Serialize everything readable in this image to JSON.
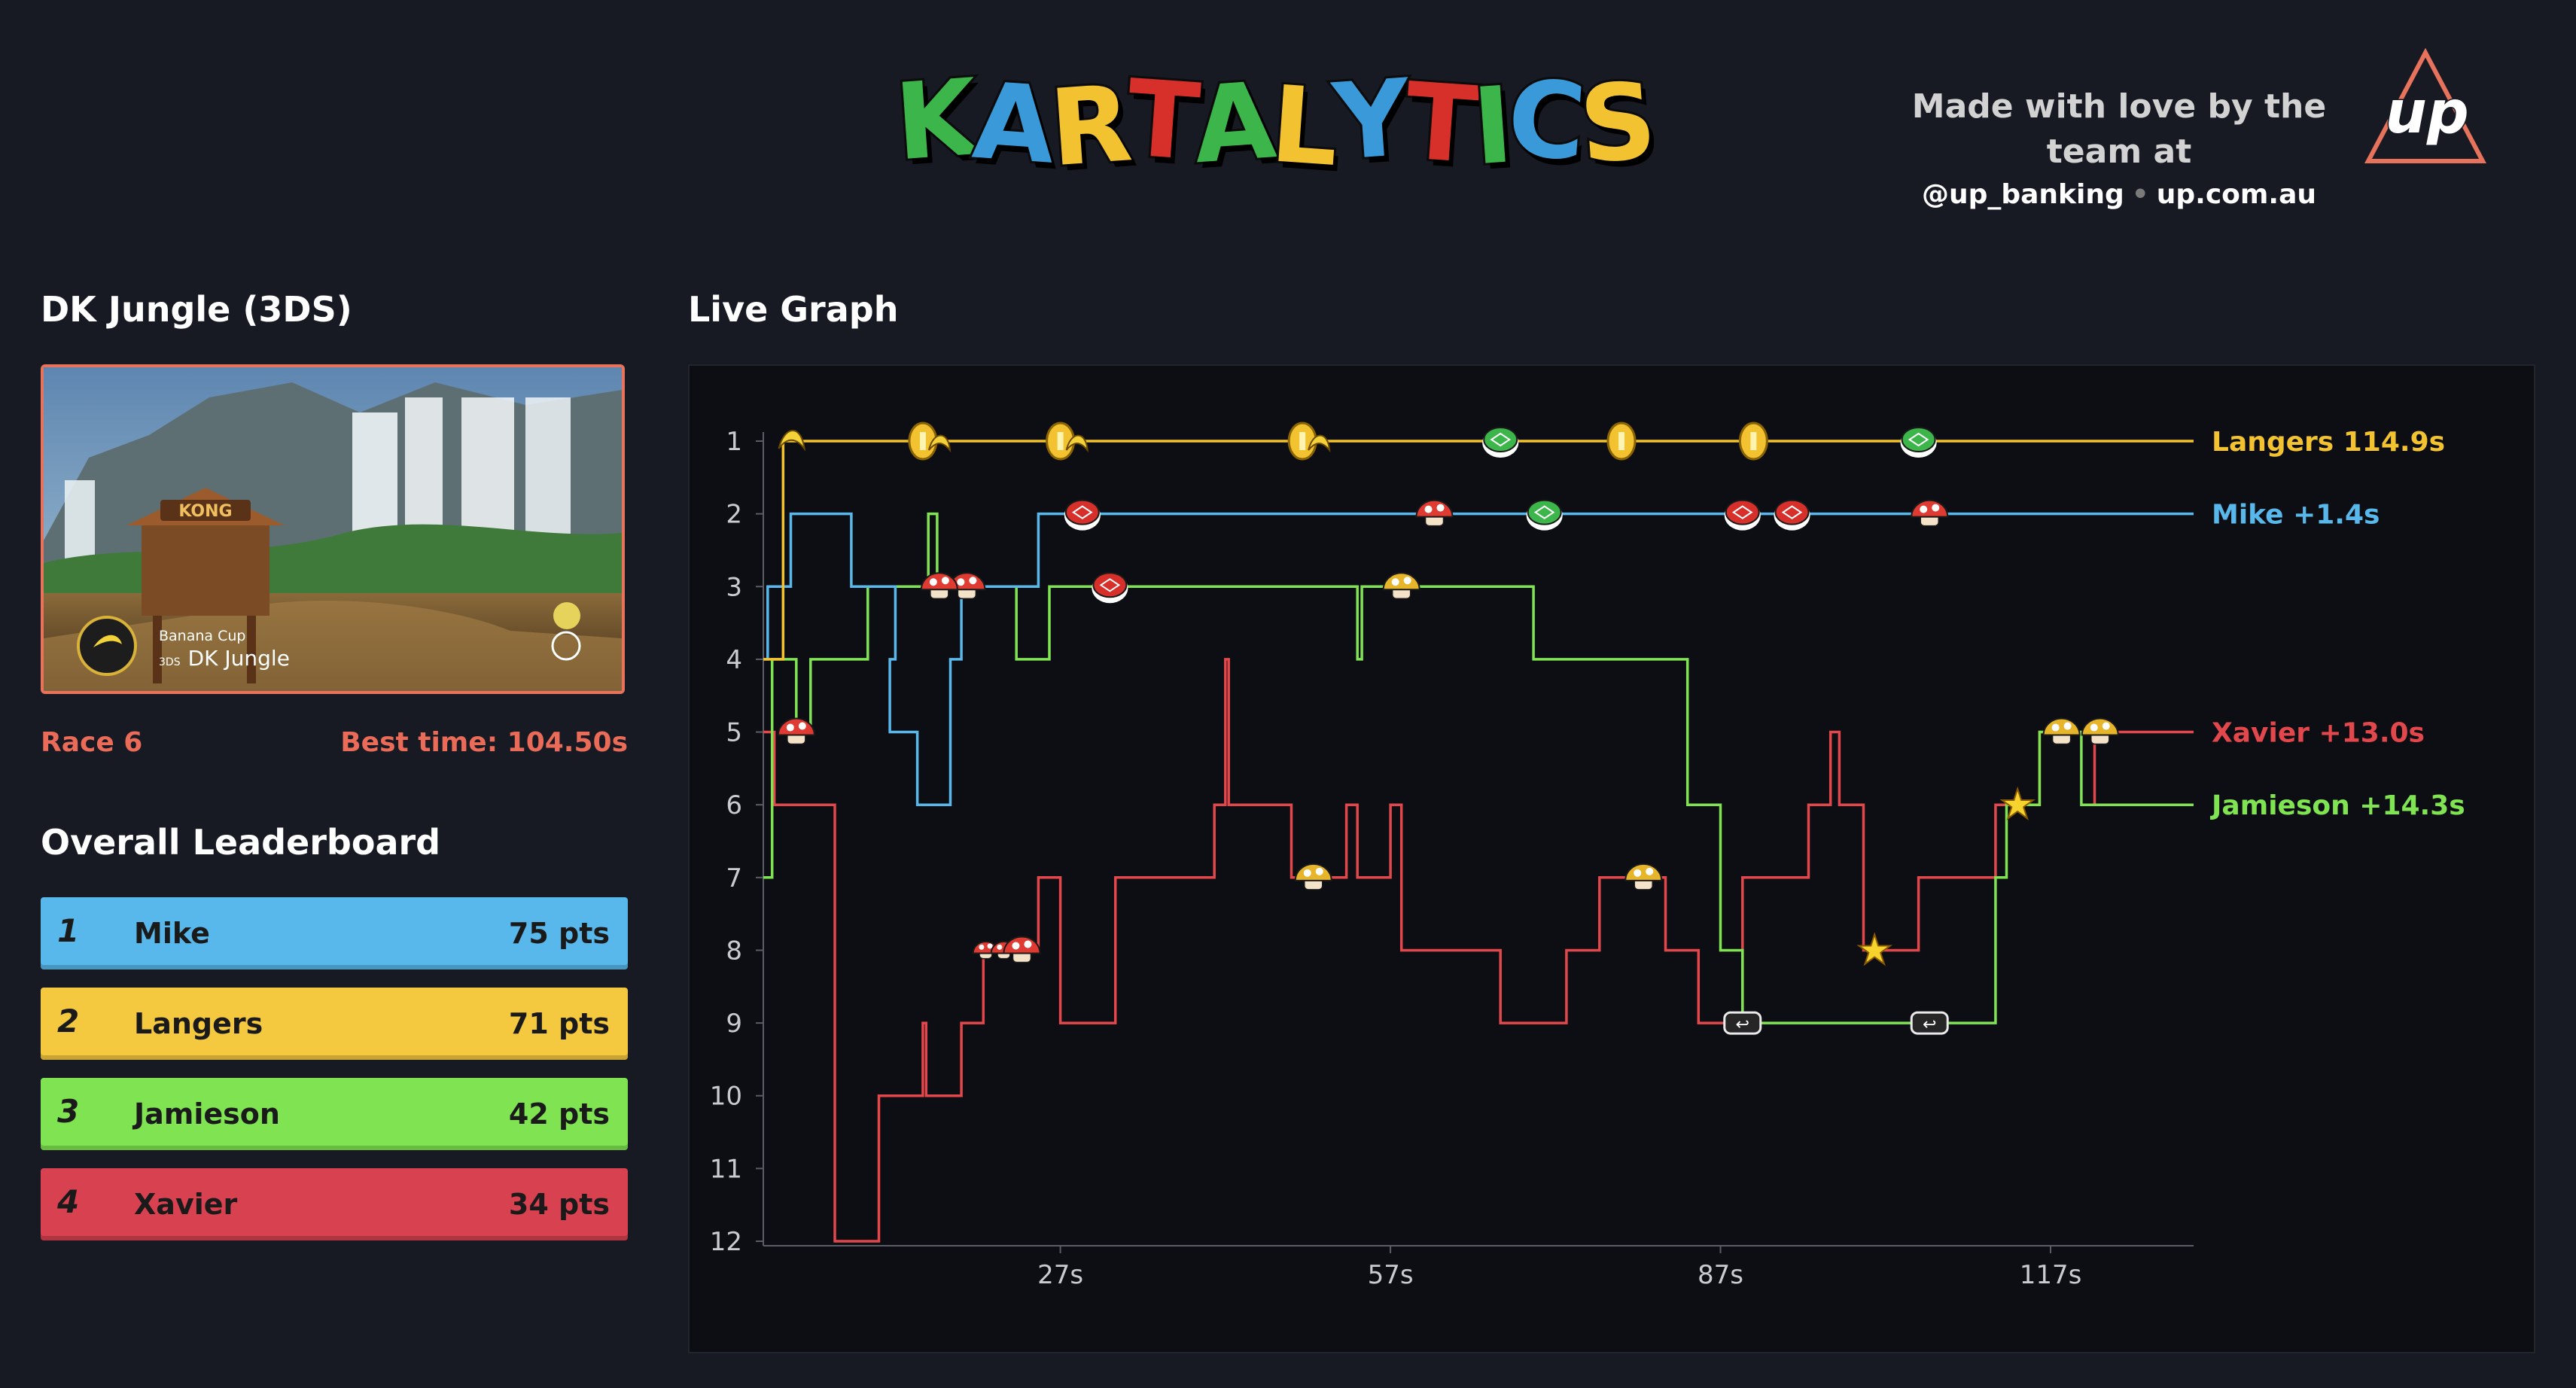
{
  "header": {
    "logo_letters": [
      {
        "ch": "K",
        "color": "#3cb54a"
      },
      {
        "ch": "A",
        "color": "#3a9ad9"
      },
      {
        "ch": "R",
        "color": "#f2c230"
      },
      {
        "ch": "T",
        "color": "#d7302a"
      },
      {
        "ch": "A",
        "color": "#3cb54a"
      },
      {
        "ch": "L",
        "color": "#f2c230"
      },
      {
        "ch": "Y",
        "color": "#3a9ad9"
      },
      {
        "ch": "T",
        "color": "#d7302a"
      },
      {
        "ch": "I",
        "color": "#3cb54a"
      },
      {
        "ch": "C",
        "color": "#3a9ad9"
      },
      {
        "ch": "S",
        "color": "#f2c230"
      }
    ],
    "credit_line": "Made with love by the team at",
    "twitter": "@up_banking",
    "website": "up.com.au",
    "up_logo_text": "up",
    "up_logo_color": "#e8735c"
  },
  "track": {
    "section_title": "DK Jungle (3DS)",
    "cup": "Banana Cup",
    "platform": "3DS",
    "name": "DK Jungle",
    "sign_text": "KONG",
    "race_label": "Race 6",
    "best_time": "Best time: 104.50s"
  },
  "leaderboard": {
    "title": "Overall Leaderboard",
    "rows": [
      {
        "rank": "1",
        "name": "Mike",
        "points": "75 pts",
        "color": "#58b8eb"
      },
      {
        "rank": "2",
        "name": "Langers",
        "points": "71 pts",
        "color": "#f5c93f"
      },
      {
        "rank": "3",
        "name": "Jamieson",
        "points": "42 pts",
        "color": "#7fe352"
      },
      {
        "rank": "4",
        "name": "Xavier",
        "points": "34 pts",
        "color": "#d8414f"
      }
    ]
  },
  "graph": {
    "title": "Live Graph"
  },
  "chart_data": {
    "type": "line",
    "subtype": "step",
    "title": "Live Graph",
    "y_axis": {
      "label": "",
      "ticks": [
        1,
        2,
        3,
        4,
        5,
        6,
        7,
        8,
        9,
        10,
        11,
        12
      ],
      "inverted": true,
      "range": [
        1,
        12
      ]
    },
    "x_axis": {
      "label": "",
      "ticks": [
        27,
        57,
        87,
        117
      ],
      "tick_labels": [
        "27s",
        "57s",
        "87s",
        "117s"
      ],
      "range": [
        0,
        130
      ]
    },
    "grid": false,
    "legend_placement": "end-of-lines-right",
    "series": [
      {
        "name": "Langers",
        "label_value": "114.9s",
        "color": "#f2c230",
        "points": [
          [
            0,
            4
          ],
          [
            1.8,
            4
          ],
          [
            1.8,
            1
          ],
          [
            130,
            1
          ]
        ]
      },
      {
        "name": "Mike",
        "label_value": "+1.4s",
        "color": "#58b8eb",
        "points": [
          [
            0,
            4
          ],
          [
            0.4,
            4
          ],
          [
            0.4,
            3
          ],
          [
            2.5,
            3
          ],
          [
            2.5,
            2
          ],
          [
            8,
            2
          ],
          [
            8,
            3
          ],
          [
            12,
            3
          ],
          [
            12,
            4
          ],
          [
            11.5,
            4
          ],
          [
            11.5,
            5
          ],
          [
            14,
            5
          ],
          [
            14,
            6
          ],
          [
            17,
            6
          ],
          [
            17,
            4
          ],
          [
            18,
            4
          ],
          [
            18,
            3
          ],
          [
            25,
            3
          ],
          [
            25,
            2
          ],
          [
            130,
            2
          ]
        ]
      },
      {
        "name": "Xavier",
        "label_value": "+13.0s",
        "color": "#e2474b",
        "points": [
          [
            0,
            5
          ],
          [
            1,
            5
          ],
          [
            1,
            6
          ],
          [
            6.5,
            6
          ],
          [
            6.5,
            12
          ],
          [
            10.5,
            12
          ],
          [
            10.5,
            10
          ],
          [
            14.5,
            10
          ],
          [
            14.5,
            9
          ],
          [
            14.8,
            9
          ],
          [
            14.8,
            10
          ],
          [
            18,
            10
          ],
          [
            18,
            9
          ],
          [
            20,
            9
          ],
          [
            20,
            8
          ],
          [
            25,
            8
          ],
          [
            25,
            7
          ],
          [
            27,
            7
          ],
          [
            27,
            9
          ],
          [
            32,
            9
          ],
          [
            32,
            7
          ],
          [
            41,
            7
          ],
          [
            41,
            6
          ],
          [
            42,
            6
          ],
          [
            42,
            4
          ],
          [
            42.3,
            4
          ],
          [
            42.3,
            6
          ],
          [
            48,
            6
          ],
          [
            48,
            7
          ],
          [
            53,
            7
          ],
          [
            53,
            6
          ],
          [
            54,
            6
          ],
          [
            54,
            7
          ],
          [
            57,
            7
          ],
          [
            57,
            6
          ],
          [
            58,
            6
          ],
          [
            58,
            8
          ],
          [
            67,
            8
          ],
          [
            67,
            9
          ],
          [
            73,
            9
          ],
          [
            73,
            8
          ],
          [
            76,
            8
          ],
          [
            76,
            7
          ],
          [
            82,
            7
          ],
          [
            82,
            8
          ],
          [
            85,
            8
          ],
          [
            85,
            9
          ],
          [
            89,
            9
          ],
          [
            89,
            7
          ],
          [
            95,
            7
          ],
          [
            95,
            6
          ],
          [
            97,
            6
          ],
          [
            97,
            5
          ],
          [
            97.8,
            5
          ],
          [
            97.8,
            6
          ],
          [
            100,
            6
          ],
          [
            100,
            8
          ],
          [
            105,
            8
          ],
          [
            105,
            7
          ],
          [
            112,
            7
          ],
          [
            112,
            6
          ],
          [
            116,
            6
          ],
          [
            116,
            5
          ],
          [
            121,
            5
          ],
          [
            121,
            6
          ],
          [
            121,
            5
          ],
          [
            130,
            5
          ]
        ]
      },
      {
        "name": "Jamieson",
        "label_value": "+14.3s",
        "color": "#7fe352",
        "points": [
          [
            0,
            7
          ],
          [
            0.8,
            7
          ],
          [
            0.8,
            4
          ],
          [
            3,
            4
          ],
          [
            3,
            5
          ],
          [
            4.3,
            5
          ],
          [
            4.3,
            4
          ],
          [
            9.5,
            4
          ],
          [
            9.5,
            3
          ],
          [
            15,
            3
          ],
          [
            15,
            2
          ],
          [
            15.8,
            2
          ],
          [
            15.8,
            3
          ],
          [
            23,
            3
          ],
          [
            23,
            4
          ],
          [
            26,
            4
          ],
          [
            26,
            3
          ],
          [
            54,
            3
          ],
          [
            54,
            4
          ],
          [
            54.4,
            4
          ],
          [
            54.4,
            3
          ],
          [
            70,
            3
          ],
          [
            70,
            4
          ],
          [
            84,
            4
          ],
          [
            84,
            6
          ],
          [
            87,
            6
          ],
          [
            87,
            8
          ],
          [
            89,
            8
          ],
          [
            89,
            9
          ],
          [
            112,
            9
          ],
          [
            112,
            7
          ],
          [
            113,
            7
          ],
          [
            113,
            6
          ],
          [
            116,
            6
          ],
          [
            116,
            5
          ],
          [
            119.8,
            5
          ],
          [
            119.8,
            6
          ],
          [
            130,
            6
          ]
        ]
      }
    ],
    "item_markers": [
      {
        "series": "Langers",
        "x": 2.5,
        "icon": "banana"
      },
      {
        "series": "Langers",
        "x": 14.5,
        "icon": "coin-banana"
      },
      {
        "series": "Langers",
        "x": 27,
        "icon": "coin-banana"
      },
      {
        "series": "Langers",
        "x": 49,
        "icon": "coin-banana"
      },
      {
        "series": "Langers",
        "x": 67,
        "icon": "green-shell"
      },
      {
        "series": "Langers",
        "x": 78,
        "icon": "coin"
      },
      {
        "series": "Langers",
        "x": 90,
        "icon": "coin"
      },
      {
        "series": "Langers",
        "x": 105,
        "icon": "green-shell"
      },
      {
        "series": "Mike",
        "x": 29,
        "icon": "red-shell"
      },
      {
        "series": "Mike",
        "x": 61,
        "icon": "mushroom"
      },
      {
        "series": "Mike",
        "x": 71,
        "icon": "green-shell"
      },
      {
        "series": "Mike",
        "x": 89,
        "icon": "red-shell"
      },
      {
        "series": "Mike",
        "x": 93.5,
        "icon": "red-shell"
      },
      {
        "series": "Mike",
        "x": 106,
        "icon": "mushroom"
      },
      {
        "series": "Mike",
        "x": 18.5,
        "icon": "mushroom"
      },
      {
        "series": "Jamieson",
        "x": 3,
        "icon": "mushroom"
      },
      {
        "series": "Jamieson",
        "x": 16,
        "icon": "mushroom"
      },
      {
        "series": "Jamieson",
        "x": 31.5,
        "icon": "red-shell"
      },
      {
        "series": "Jamieson",
        "x": 58,
        "icon": "golden-mushroom"
      },
      {
        "series": "Jamieson",
        "x": 89,
        "icon": "bullet-bill"
      },
      {
        "series": "Jamieson",
        "x": 106,
        "icon": "bullet-bill"
      },
      {
        "series": "Jamieson",
        "x": 114,
        "icon": "star"
      },
      {
        "series": "Jamieson",
        "x": 118,
        "icon": "golden-mushroom"
      },
      {
        "series": "Xavier",
        "x": 23.5,
        "icon": "triple-mushroom"
      },
      {
        "series": "Xavier",
        "x": 50,
        "icon": "golden-mushroom"
      },
      {
        "series": "Xavier",
        "x": 80,
        "icon": "golden-mushroom"
      },
      {
        "series": "Xavier",
        "x": 101,
        "icon": "star"
      },
      {
        "series": "Xavier",
        "x": 121.5,
        "icon": "golden-mushroom"
      }
    ]
  }
}
